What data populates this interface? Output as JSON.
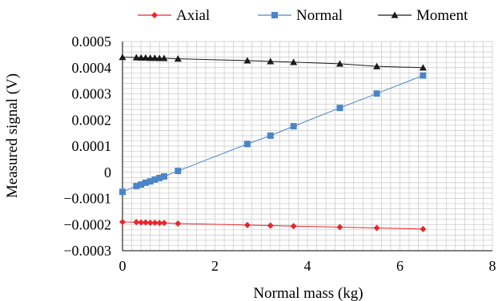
{
  "chart_data": {
    "type": "line",
    "xlabel": "Normal mass (kg)",
    "ylabel": "Measured signal (V)",
    "xlim": [
      0,
      8
    ],
    "ylim": [
      -0.0003,
      0.0005
    ],
    "xticks": [
      0,
      2,
      4,
      6,
      8
    ],
    "xtick_labels": [
      "0",
      "2",
      "4",
      "6",
      "8"
    ],
    "yticks": [
      -0.0003,
      -0.0002,
      -0.0001,
      0,
      0.0001,
      0.0002,
      0.0003,
      0.0004,
      0.0005
    ],
    "ytick_labels": [
      "−0.0003",
      "−0.0002",
      "−0.0001",
      "0",
      "0.0001",
      "0.0002",
      "0.0003",
      "0.0004",
      "0.0005"
    ],
    "grid": true,
    "legend_position": "top",
    "series": [
      {
        "name": "Axial",
        "color": "#e8262b",
        "marker": "diamond",
        "x": [
          0,
          0.3,
          0.4,
          0.5,
          0.6,
          0.7,
          0.8,
          0.9,
          1.2,
          2.7,
          3.2,
          3.7,
          4.7,
          5.5,
          6.5
        ],
        "y": [
          -0.00019,
          -0.000191,
          -0.000192,
          -0.000192,
          -0.000193,
          -0.000193,
          -0.000194,
          -0.000194,
          -0.000196,
          -0.000202,
          -0.000204,
          -0.000206,
          -0.00021,
          -0.000213,
          -0.000217
        ]
      },
      {
        "name": "Normal",
        "color": "#4a86c5",
        "marker": "square",
        "x": [
          0,
          0.3,
          0.4,
          0.5,
          0.6,
          0.7,
          0.8,
          0.9,
          1.2,
          2.7,
          3.2,
          3.7,
          4.7,
          5.5,
          6.5
        ],
        "y": [
          -7.5e-05,
          -5.3e-05,
          -4.7e-05,
          -4e-05,
          -3.5e-05,
          -2.8e-05,
          -2.2e-05,
          -1.6e-05,
          5e-06,
          0.000108,
          0.00014,
          0.000176,
          0.000246,
          0.000301,
          0.00037
        ]
      },
      {
        "name": "Moment",
        "color": "#1a1a1a",
        "marker": "triangle",
        "x": [
          0,
          0.3,
          0.4,
          0.5,
          0.6,
          0.7,
          0.8,
          0.9,
          1.2,
          2.7,
          3.2,
          3.7,
          4.7,
          5.5,
          6.5
        ],
        "y": [
          0.00044,
          0.000439,
          0.000438,
          0.000438,
          0.000437,
          0.000437,
          0.000436,
          0.000436,
          0.000434,
          0.000427,
          0.000424,
          0.000421,
          0.000415,
          0.000405,
          0.0004
        ]
      }
    ]
  }
}
